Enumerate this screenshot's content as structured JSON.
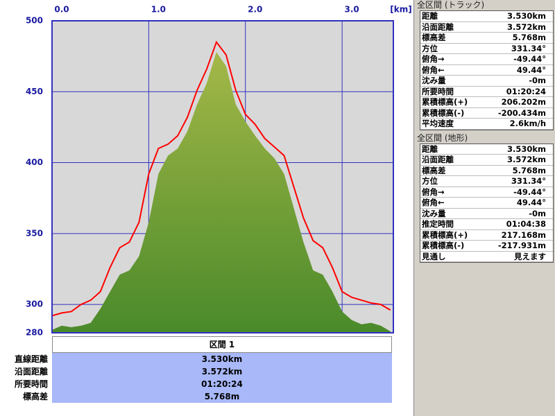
{
  "chart_data": {
    "type": "area",
    "x_label": "[km]",
    "x": [
      0.0,
      0.1,
      0.2,
      0.3,
      0.4,
      0.5,
      0.6,
      0.7,
      0.8,
      0.9,
      1.0,
      1.1,
      1.2,
      1.3,
      1.4,
      1.5,
      1.6,
      1.7,
      1.8,
      1.9,
      2.0,
      2.1,
      2.2,
      2.3,
      2.4,
      2.5,
      2.6,
      2.7,
      2.8,
      2.9,
      3.0,
      3.1,
      3.2,
      3.3,
      3.4,
      3.5
    ],
    "series": [
      {
        "type": "area",
        "color": "#6a9a3a",
        "values": [
          282,
          285,
          284,
          285,
          287,
          297,
          309,
          321,
          324,
          334,
          358,
          392,
          405,
          410,
          422,
          441,
          456,
          478,
          468,
          441,
          429,
          419,
          410,
          403,
          392,
          368,
          344,
          324,
          321,
          309,
          295,
          289,
          286,
          287,
          285,
          281
        ]
      },
      {
        "type": "line",
        "color": "#ff0000",
        "values": [
          292,
          294,
          295,
          300,
          303,
          309,
          326,
          340,
          344,
          358,
          392,
          410,
          413,
          419,
          432,
          451,
          466,
          485,
          476,
          451,
          434,
          427,
          417,
          411,
          405,
          383,
          361,
          345,
          340,
          326,
          309,
          305,
          303,
          301,
          300,
          296
        ]
      }
    ],
    "xlim": [
      0,
      3.53
    ],
    "ylim": [
      280,
      500
    ],
    "xticks": [
      {
        "value": 0,
        "label": "0.0"
      },
      {
        "value": 1,
        "label": "1.0"
      },
      {
        "value": 2,
        "label": "2.0"
      },
      {
        "value": 3,
        "label": "3.0"
      }
    ],
    "yticks": [
      280,
      300,
      350,
      400,
      450,
      500
    ],
    "grid": true
  },
  "section_table": {
    "header": "区間 1",
    "rows": [
      [
        "直線距離",
        "3.530km"
      ],
      [
        "沿面距離",
        "3.572km"
      ],
      [
        "所要時間",
        "01:20:24"
      ],
      [
        "標高差",
        "5.768m"
      ]
    ]
  },
  "track_panel": {
    "title": "全区間 (トラック)",
    "rows": [
      [
        "距離",
        "3.530km"
      ],
      [
        "沿面距離",
        "3.572km"
      ],
      [
        "標高差",
        "5.768m"
      ],
      [
        "方位",
        "331.34°"
      ],
      [
        "俯角→",
        "-49.44°"
      ],
      [
        "俯角←",
        "49.44°"
      ],
      [
        "沈み量",
        "-0m"
      ],
      [
        "所要時間",
        "01:20:24"
      ],
      [
        "累積標高(+)",
        "206.202m"
      ],
      [
        "累積標高(-)",
        "-200.434m"
      ],
      [
        "平均速度",
        "2.6km/h"
      ]
    ]
  },
  "terrain_panel": {
    "title": "全区間 (地形)",
    "rows": [
      [
        "距離",
        "3.530km"
      ],
      [
        "沿面距離",
        "3.572km"
      ],
      [
        "標高差",
        "5.768m"
      ],
      [
        "方位",
        "331.34°"
      ],
      [
        "俯角→",
        "-49.44°"
      ],
      [
        "俯角←",
        "49.44°"
      ],
      [
        "沈み量",
        "-0m"
      ],
      [
        "推定時間",
        "01:04:38"
      ],
      [
        "累積標高(+)",
        "217.168m"
      ],
      [
        "累積標高(-)",
        "-217.931m"
      ],
      [
        "見通し",
        "見えます"
      ]
    ]
  }
}
